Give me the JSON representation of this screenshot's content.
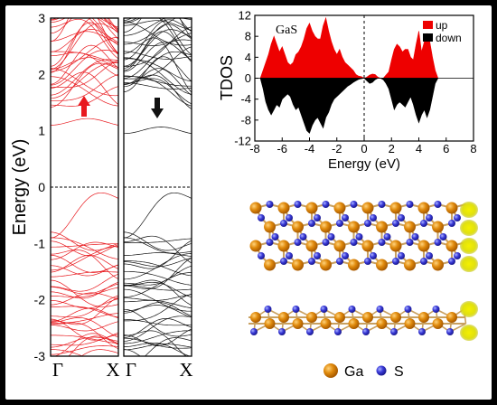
{
  "chart_data": [
    {
      "type": "line",
      "subtype": "band-structure",
      "ylabel": "Energy (eV)",
      "ylim": [
        -3,
        3
      ],
      "yticks": [
        "3",
        "2",
        "1",
        "0",
        "-1",
        "-2",
        "-3"
      ],
      "fermi_level": 0,
      "panels": [
        {
          "spin": "up",
          "color": "#e8191e",
          "arrow": "up",
          "kpoints": [
            "Γ",
            "X"
          ]
        },
        {
          "spin": "down",
          "color": "#111111",
          "arrow": "down",
          "kpoints": [
            "Γ",
            "X"
          ]
        }
      ]
    },
    {
      "type": "area",
      "title": "GaS",
      "xlabel": "Energy (eV)",
      "ylabel": "TDOS",
      "xlim": [
        -8,
        8
      ],
      "ylim": [
        -12,
        12
      ],
      "xticks": [
        "-8",
        "-6",
        "-4",
        "-2",
        "0",
        "2",
        "4",
        "6",
        "8"
      ],
      "yticks": [
        "12",
        "8",
        "4",
        "0",
        "-4",
        "-8",
        "-12"
      ],
      "legend_position": "top-right",
      "series": [
        {
          "name": "up",
          "color": "#ee0000",
          "x": [
            -7.6,
            -7.4,
            -7.2,
            -7.0,
            -6.8,
            -6.6,
            -6.4,
            -6.2,
            -6.0,
            -5.8,
            -5.6,
            -5.4,
            -5.2,
            -5.0,
            -4.8,
            -4.6,
            -4.4,
            -4.2,
            -4.0,
            -3.8,
            -3.6,
            -3.4,
            -3.2,
            -3.0,
            -2.8,
            -2.6,
            -2.4,
            -2.2,
            -2.0,
            -1.8,
            -1.6,
            -1.4,
            -1.2,
            -1.0,
            -0.8,
            -0.6,
            -0.4,
            -0.2,
            0.0,
            0.2,
            0.4,
            0.6,
            0.8,
            1.0,
            1.2,
            1.4,
            1.6,
            1.8,
            2.0,
            2.2,
            2.4,
            2.6,
            2.8,
            3.0,
            3.2,
            3.4,
            3.6,
            3.8,
            4.0,
            4.2,
            4.4,
            4.6,
            4.8,
            5.0,
            5.2,
            5.4
          ],
          "values": [
            0,
            1.5,
            3,
            4.5,
            6.5,
            8,
            6.5,
            5,
            6,
            4.5,
            3,
            2.5,
            3,
            4.5,
            5,
            6,
            7.5,
            9.5,
            10.5,
            9,
            8,
            7.5,
            7.5,
            10,
            11.5,
            9,
            7,
            5.5,
            4.5,
            5.5,
            4,
            3,
            2.5,
            2,
            1.5,
            0.7,
            0.4,
            0.3,
            0,
            0.2,
            0.6,
            0.8,
            0.7,
            0.2,
            0,
            0,
            0.6,
            1.2,
            3.5,
            5.5,
            6.5,
            6,
            5,
            5.5,
            5.5,
            4,
            3.5,
            6.5,
            9,
            5,
            7,
            8.5,
            7,
            4,
            1.5,
            0
          ]
        },
        {
          "name": "down",
          "color": "#000000",
          "x": [
            -7.6,
            -7.4,
            -7.2,
            -7.0,
            -6.8,
            -6.6,
            -6.4,
            -6.2,
            -6.0,
            -5.8,
            -5.6,
            -5.4,
            -5.2,
            -5.0,
            -4.8,
            -4.6,
            -4.4,
            -4.2,
            -4.0,
            -3.8,
            -3.6,
            -3.4,
            -3.2,
            -3.0,
            -2.8,
            -2.6,
            -2.4,
            -2.2,
            -2.0,
            -1.8,
            -1.6,
            -1.4,
            -1.2,
            -1.0,
            -0.8,
            -0.6,
            -0.4,
            -0.2,
            0.0,
            0.2,
            0.4,
            0.6,
            0.8,
            1.0,
            1.2,
            1.4,
            1.6,
            1.8,
            2.0,
            2.2,
            2.4,
            2.6,
            2.8,
            3.0,
            3.2,
            3.4,
            3.6,
            3.8,
            4.0,
            4.2,
            4.4,
            4.6,
            4.8,
            5.0,
            5.2,
            5.4
          ],
          "values": [
            0,
            -2,
            -4.5,
            -6,
            -7,
            -6,
            -5,
            -5.5,
            -4,
            -3.5,
            -3,
            -3.5,
            -5,
            -6,
            -5.5,
            -7,
            -8.5,
            -10,
            -10.5,
            -9,
            -8,
            -7.5,
            -8.5,
            -9.5,
            -7.5,
            -6.5,
            -5,
            -4,
            -3.5,
            -3,
            -2.5,
            -2,
            -1.5,
            -1.2,
            -0.8,
            -0.5,
            -0.2,
            -0.1,
            0,
            -0.5,
            -1,
            -0.8,
            -0.3,
            0,
            0,
            -0.3,
            -1,
            -2,
            -4,
            -6,
            -5,
            -4.5,
            -5,
            -5.5,
            -4.5,
            -3.5,
            -5,
            -7,
            -8.5,
            -7,
            -6,
            -7.5,
            -6,
            -3.5,
            -1,
            0
          ]
        }
      ]
    }
  ],
  "structure": {
    "legend": [
      {
        "label": "Ga",
        "color": "#e08a0c"
      },
      {
        "label": "S",
        "color": "#3a3ad8"
      }
    ]
  }
}
